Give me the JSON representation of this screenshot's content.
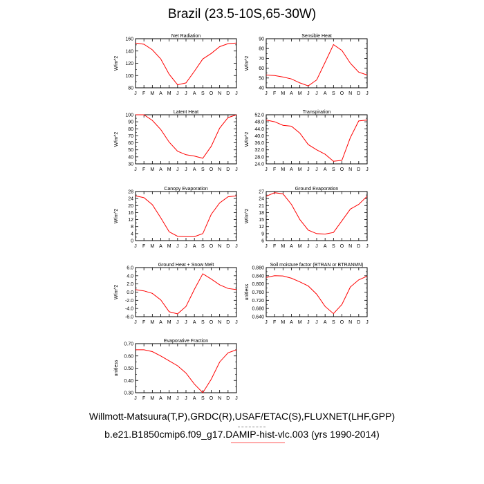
{
  "page": {
    "title": "Brazil (23.5-10S,65-30W)",
    "footer_line_1": "Willmott-Matsuura(T,P),GRDC(R),USAF/ETAC(S),FLUXNET(LHF,GPP)",
    "footer_line_2": "b.e21.B1850cmip6.f09_g17.DAMIP-hist-vlc.003 (yrs 1990-2014)"
  },
  "colors": {
    "line": "#ff0000",
    "axis": "#000000"
  },
  "chart_data": [
    {
      "type": "line",
      "title": "Net Radiation",
      "ylabel": "W/m^2",
      "x": [
        "J",
        "F",
        "M",
        "A",
        "M",
        "J",
        "J",
        "A",
        "S",
        "O",
        "N",
        "D",
        "J"
      ],
      "ylim": [
        80,
        160
      ],
      "yticks": [
        "80",
        "100",
        "120",
        "140",
        "160"
      ],
      "values": [
        153,
        151,
        142,
        127,
        102,
        85,
        88,
        107,
        127,
        136,
        147,
        152,
        153
      ]
    },
    {
      "type": "line",
      "title": "Sensible Heat",
      "ylabel": "W/m^2",
      "x": [
        "J",
        "F",
        "M",
        "A",
        "M",
        "J",
        "J",
        "A",
        "S",
        "O",
        "N",
        "D",
        "J"
      ],
      "ylim": [
        40,
        90
      ],
      "yticks": [
        "40",
        "50",
        "60",
        "70",
        "80",
        "90"
      ],
      "values": [
        53,
        52.5,
        51,
        49,
        45,
        42,
        48,
        66,
        84,
        78,
        65,
        56,
        53
      ]
    },
    {
      "type": "line",
      "title": "Latent Heat",
      "ylabel": "W/m^2",
      "x": [
        "J",
        "F",
        "M",
        "A",
        "M",
        "J",
        "J",
        "A",
        "S",
        "O",
        "N",
        "D",
        "J"
      ],
      "ylim": [
        30,
        100
      ],
      "yticks": [
        "30",
        "40",
        "50",
        "60",
        "70",
        "80",
        "90",
        "100"
      ],
      "values": [
        100,
        100,
        92,
        79,
        61,
        48,
        43,
        41,
        38,
        55,
        81,
        96,
        100
      ]
    },
    {
      "type": "line",
      "title": "Transpiration",
      "ylabel": "W/m^2",
      "x": [
        "J",
        "F",
        "M",
        "A",
        "M",
        "J",
        "J",
        "A",
        "S",
        "O",
        "N",
        "D",
        "J"
      ],
      "ylim": [
        24,
        52
      ],
      "yticks": [
        "24.0",
        "28.0",
        "32.0",
        "36.0",
        "40.0",
        "44.0",
        "48.0",
        "52.0"
      ],
      "values": [
        49,
        48,
        46,
        45.5,
        41.5,
        35,
        32,
        29.5,
        25.5,
        26,
        39,
        48.5,
        49
      ]
    },
    {
      "type": "line",
      "title": "Canopy Evaporation",
      "ylabel": "W/m^2",
      "x": [
        "J",
        "F",
        "M",
        "A",
        "M",
        "J",
        "J",
        "A",
        "S",
        "O",
        "N",
        "D",
        "J"
      ],
      "ylim": [
        0,
        28
      ],
      "yticks": [
        "0",
        "4",
        "8",
        "12",
        "16",
        "20",
        "24",
        "28"
      ],
      "values": [
        25.5,
        24.5,
        20.5,
        13,
        5,
        2.5,
        2.3,
        2.3,
        4,
        15,
        21.5,
        25,
        25.5
      ]
    },
    {
      "type": "line",
      "title": "Ground Evaporation",
      "ylabel": "W/m^2",
      "x": [
        "J",
        "F",
        "M",
        "A",
        "M",
        "J",
        "J",
        "A",
        "S",
        "O",
        "N",
        "D",
        "J"
      ],
      "ylim": [
        6,
        27
      ],
      "yticks": [
        "6",
        "9",
        "12",
        "15",
        "18",
        "21",
        "24",
        "27"
      ],
      "values": [
        25,
        26.5,
        26,
        21.5,
        15,
        10.5,
        9,
        8.8,
        9.5,
        14.5,
        19.5,
        21.5,
        25
      ]
    },
    {
      "type": "line",
      "title": "Ground Heat + Snow Melt",
      "ylabel": "W/m^2",
      "x": [
        "J",
        "F",
        "M",
        "A",
        "M",
        "J",
        "J",
        "A",
        "S",
        "O",
        "N",
        "D",
        "J"
      ],
      "ylim": [
        -6,
        6
      ],
      "yticks": [
        "-6.0",
        "-4.0",
        "-2.0",
        "0.0",
        "2.0",
        "4.0",
        "6.0"
      ],
      "values": [
        0.6,
        0.3,
        -0.3,
        -1.9,
        -4.8,
        -5.3,
        -3.5,
        0.7,
        4.5,
        3.2,
        1.8,
        0.9,
        0.6
      ]
    },
    {
      "type": "line",
      "title": "Soil moisture factor (BTRAN or BTRANMN)",
      "ylabel": "unitless",
      "x": [
        "J",
        "F",
        "M",
        "A",
        "M",
        "J",
        "J",
        "A",
        "S",
        "O",
        "N",
        "D",
        "J"
      ],
      "ylim": [
        0.64,
        0.88
      ],
      "yticks": [
        "0.640",
        "0.680",
        "0.720",
        "0.760",
        "0.800",
        "0.840",
        "0.880"
      ],
      "values": [
        0.832,
        0.84,
        0.839,
        0.828,
        0.81,
        0.79,
        0.75,
        0.69,
        0.655,
        0.7,
        0.785,
        0.82,
        0.838
      ]
    },
    {
      "type": "line",
      "title": "Evaporative Fraction",
      "ylabel": "unitless",
      "x": [
        "J",
        "F",
        "M",
        "A",
        "M",
        "J",
        "J",
        "A",
        "S",
        "O",
        "N",
        "D",
        "J"
      ],
      "ylim": [
        0.3,
        0.7
      ],
      "yticks": [
        "0.30",
        "0.40",
        "0.50",
        "0.60",
        "0.70"
      ],
      "values": [
        0.65,
        0.65,
        0.635,
        0.6,
        0.56,
        0.52,
        0.46,
        0.37,
        0.3,
        0.41,
        0.55,
        0.625,
        0.65
      ]
    }
  ]
}
